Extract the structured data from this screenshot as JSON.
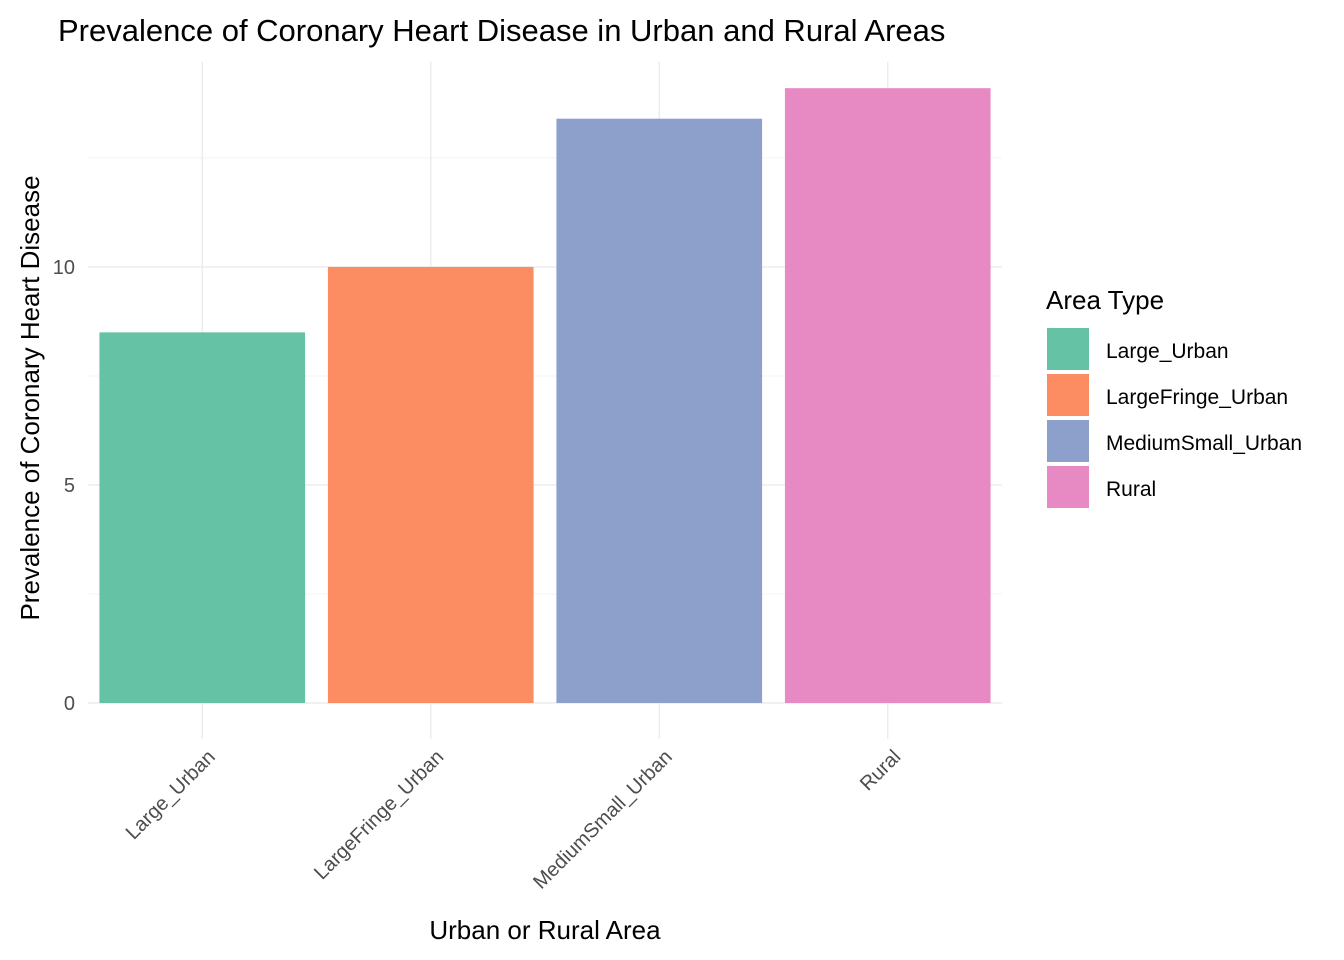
{
  "chart_data": {
    "type": "bar",
    "title": "Prevalence of Coronary Heart Disease in Urban and Rural Areas",
    "xlabel": "Urban or Rural Area",
    "ylabel": "Prevalence of Coronary Heart Disease",
    "categories": [
      "Large_Urban",
      "LargeFringe_Urban",
      "MediumSmall_Urban",
      "Rural"
    ],
    "values": [
      8.5,
      10.0,
      13.4,
      14.1
    ],
    "colors": [
      "#66c2a5",
      "#fc8d62",
      "#8da0cb",
      "#e78ac3"
    ],
    "ylim": [
      0,
      14.7
    ],
    "yticks": [
      0,
      5,
      10
    ],
    "grid": true,
    "legend": {
      "title": "Area Type",
      "position": "right",
      "entries": [
        "Large_Urban",
        "LargeFringe_Urban",
        "MediumSmall_Urban",
        "Rural"
      ]
    }
  }
}
